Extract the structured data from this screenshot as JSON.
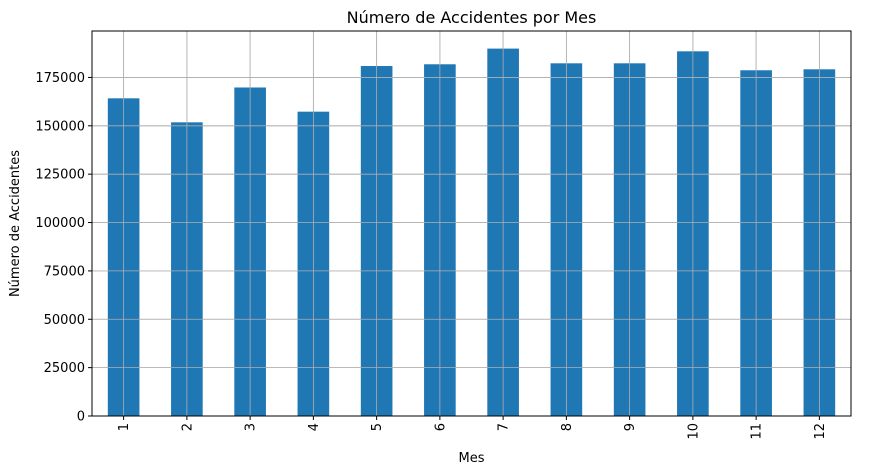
{
  "chart_data": {
    "type": "bar",
    "title": "Número de Accidentes por Mes",
    "xlabel": "Mes",
    "ylabel": "Número de Accidentes",
    "categories": [
      "1",
      "2",
      "3",
      "4",
      "5",
      "6",
      "7",
      "8",
      "9",
      "10",
      "11",
      "12"
    ],
    "values": [
      164200,
      151800,
      169800,
      157300,
      180900,
      181800,
      189900,
      182300,
      182300,
      188500,
      178700,
      179200
    ],
    "ylim": [
      0,
      199000
    ],
    "yticks": [
      0,
      25000,
      50000,
      75000,
      100000,
      125000,
      150000,
      175000
    ],
    "ytick_labels": [
      "0",
      "25000",
      "50000",
      "75000",
      "100000",
      "125000",
      "150000",
      "175000"
    ],
    "bar_color": "#1f77b4",
    "grid": true,
    "legend": "none",
    "xtick_rotation": "vertical"
  }
}
